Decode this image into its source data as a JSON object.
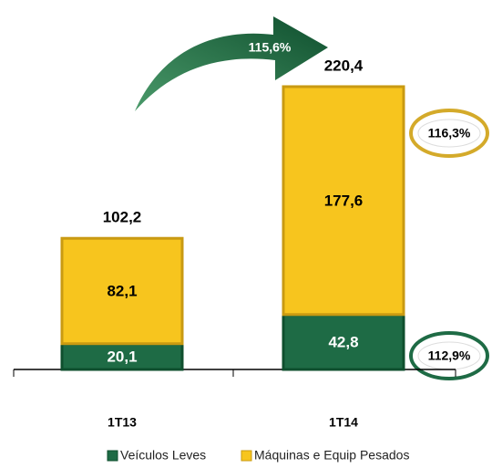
{
  "chart_data": {
    "type": "stacked_bar",
    "categories": [
      "1T13",
      "1T14"
    ],
    "series": [
      {
        "name": "Veículos Leves",
        "color": "#1e6b45",
        "values": [
          20.1,
          42.8
        ],
        "value_labels": [
          "20,1",
          "42,8"
        ]
      },
      {
        "name": "Máquinas e Equip Pesados",
        "color": "#f7c51e",
        "values": [
          82.1,
          177.6
        ],
        "value_labels": [
          "82,1",
          "177,6"
        ]
      }
    ],
    "totals": [
      102.2,
      220.4
    ],
    "total_labels": [
      "102,2",
      "220,4"
    ],
    "annotations": [
      "115,6%",
      "116,3%",
      "112,9%"
    ],
    "ylim": [
      0,
      240
    ]
  }
}
